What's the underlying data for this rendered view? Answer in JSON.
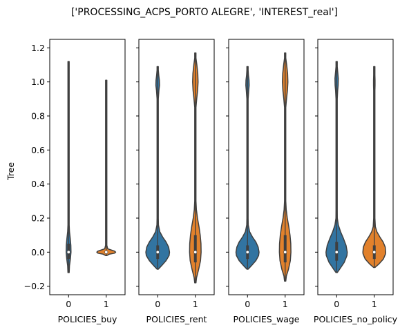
{
  "chart_data": {
    "type": "violin",
    "title": "['PROCESSING_ACPS_PORTO ALEGRE', 'INTEREST_real']",
    "ylabel": "Tree",
    "ylim": [
      -0.25,
      1.25
    ],
    "yticks": [
      -0.2,
      0.0,
      0.2,
      0.4,
      0.6,
      0.8,
      1.0,
      1.2
    ],
    "ytick_labels": [
      "−0.2",
      "0.0",
      "0.2",
      "0.4",
      "0.6",
      "0.8",
      "1.0",
      "1.2"
    ],
    "sharey": true,
    "colors": {
      "0": "#3274a1",
      "1": "#e1812c"
    },
    "panels": [
      {
        "xlabel": "POLICIES_buy",
        "categories": [
          "0",
          "1"
        ],
        "violins": [
          {
            "category": "0",
            "min": -0.12,
            "max": 1.12,
            "median": 0.0,
            "q1": -0.04,
            "q3": 0.05,
            "profile": [
              [
                -0.12,
                0.0
              ],
              [
                -0.08,
                0.06
              ],
              [
                -0.04,
                0.12
              ],
              [
                0.0,
                0.16
              ],
              [
                0.04,
                0.15
              ],
              [
                0.08,
                0.11
              ],
              [
                0.12,
                0.06
              ],
              [
                0.16,
                0.03
              ],
              [
                0.2,
                0.015
              ],
              [
                0.3,
                0.01
              ],
              [
                0.6,
                0.01
              ],
              [
                0.9,
                0.01
              ],
              [
                1.0,
                0.012
              ],
              [
                1.05,
                0.01
              ],
              [
                1.12,
                0.0
              ]
            ]
          },
          {
            "category": "1",
            "min": -0.02,
            "max": 1.01,
            "median": 0.0,
            "q1": -0.005,
            "q3": 0.005,
            "profile": [
              [
                -0.02,
                0.0
              ],
              [
                -0.012,
                0.2
              ],
              [
                -0.006,
                0.55
              ],
              [
                0.0,
                0.62
              ],
              [
                0.006,
                0.55
              ],
              [
                0.012,
                0.35
              ],
              [
                0.02,
                0.1
              ],
              [
                0.04,
                0.02
              ],
              [
                0.1,
                0.01
              ],
              [
                0.5,
                0.01
              ],
              [
                0.9,
                0.01
              ],
              [
                1.01,
                0.0
              ]
            ]
          }
        ]
      },
      {
        "xlabel": "POLICIES_rent",
        "categories": [
          "0",
          "1"
        ],
        "violins": [
          {
            "category": "0",
            "min": -0.1,
            "max": 1.09,
            "median": 0.0,
            "q1": -0.04,
            "q3": 0.04,
            "profile": [
              [
                -0.1,
                0.0
              ],
              [
                -0.08,
                0.25
              ],
              [
                -0.05,
                0.55
              ],
              [
                -0.02,
                0.75
              ],
              [
                0.0,
                0.78
              ],
              [
                0.03,
                0.72
              ],
              [
                0.06,
                0.55
              ],
              [
                0.09,
                0.32
              ],
              [
                0.12,
                0.14
              ],
              [
                0.16,
                0.05
              ],
              [
                0.2,
                0.025
              ],
              [
                0.4,
                0.015
              ],
              [
                0.8,
                0.015
              ],
              [
                0.9,
                0.03
              ],
              [
                0.95,
                0.08
              ],
              [
                0.98,
                0.12
              ],
              [
                1.01,
                0.11
              ],
              [
                1.04,
                0.07
              ],
              [
                1.07,
                0.03
              ],
              [
                1.09,
                0.0
              ]
            ]
          },
          {
            "category": "1",
            "min": -0.18,
            "max": 1.17,
            "median": 0.0,
            "q1": -0.06,
            "q3": 0.1,
            "profile": [
              [
                -0.18,
                0.0
              ],
              [
                -0.15,
                0.08
              ],
              [
                -0.1,
                0.22
              ],
              [
                -0.05,
                0.34
              ],
              [
                0.0,
                0.38
              ],
              [
                0.05,
                0.37
              ],
              [
                0.1,
                0.32
              ],
              [
                0.15,
                0.24
              ],
              [
                0.2,
                0.14
              ],
              [
                0.25,
                0.07
              ],
              [
                0.3,
                0.03
              ],
              [
                0.4,
                0.012
              ],
              [
                0.6,
                0.012
              ],
              [
                0.8,
                0.015
              ],
              [
                0.85,
                0.04
              ],
              [
                0.9,
                0.09
              ],
              [
                0.95,
                0.15
              ],
              [
                1.0,
                0.18
              ],
              [
                1.05,
                0.16
              ],
              [
                1.1,
                0.1
              ],
              [
                1.14,
                0.04
              ],
              [
                1.17,
                0.0
              ]
            ]
          }
        ]
      },
      {
        "xlabel": "POLICIES_wage",
        "categories": [
          "0",
          "1"
        ],
        "violins": [
          {
            "category": "0",
            "min": -0.1,
            "max": 1.09,
            "median": 0.0,
            "q1": -0.04,
            "q3": 0.04,
            "profile": [
              [
                -0.1,
                0.0
              ],
              [
                -0.08,
                0.25
              ],
              [
                -0.05,
                0.55
              ],
              [
                -0.02,
                0.73
              ],
              [
                0.0,
                0.76
              ],
              [
                0.03,
                0.7
              ],
              [
                0.06,
                0.55
              ],
              [
                0.09,
                0.32
              ],
              [
                0.12,
                0.14
              ],
              [
                0.16,
                0.05
              ],
              [
                0.2,
                0.025
              ],
              [
                0.4,
                0.015
              ],
              [
                0.8,
                0.015
              ],
              [
                0.9,
                0.03
              ],
              [
                0.95,
                0.08
              ],
              [
                0.98,
                0.11
              ],
              [
                1.01,
                0.1
              ],
              [
                1.04,
                0.06
              ],
              [
                1.07,
                0.03
              ],
              [
                1.09,
                0.0
              ]
            ]
          },
          {
            "category": "1",
            "min": -0.17,
            "max": 1.17,
            "median": 0.0,
            "q1": -0.06,
            "q3": 0.1,
            "profile": [
              [
                -0.17,
                0.0
              ],
              [
                -0.14,
                0.08
              ],
              [
                -0.1,
                0.22
              ],
              [
                -0.05,
                0.34
              ],
              [
                0.0,
                0.38
              ],
              [
                0.05,
                0.37
              ],
              [
                0.1,
                0.32
              ],
              [
                0.15,
                0.24
              ],
              [
                0.2,
                0.14
              ],
              [
                0.25,
                0.07
              ],
              [
                0.3,
                0.03
              ],
              [
                0.4,
                0.012
              ],
              [
                0.6,
                0.012
              ],
              [
                0.8,
                0.015
              ],
              [
                0.85,
                0.04
              ],
              [
                0.9,
                0.09
              ],
              [
                0.95,
                0.15
              ],
              [
                1.0,
                0.18
              ],
              [
                1.05,
                0.16
              ],
              [
                1.1,
                0.1
              ],
              [
                1.14,
                0.04
              ],
              [
                1.17,
                0.0
              ]
            ]
          }
        ]
      },
      {
        "xlabel": "POLICIES_no_policy",
        "categories": [
          "0",
          "1"
        ],
        "violins": [
          {
            "category": "0",
            "min": -0.12,
            "max": 1.12,
            "median": 0.0,
            "q1": -0.05,
            "q3": 0.06,
            "profile": [
              [
                -0.12,
                0.0
              ],
              [
                -0.1,
                0.2
              ],
              [
                -0.06,
                0.5
              ],
              [
                -0.02,
                0.68
              ],
              [
                0.0,
                0.7
              ],
              [
                0.04,
                0.62
              ],
              [
                0.08,
                0.45
              ],
              [
                0.12,
                0.26
              ],
              [
                0.16,
                0.11
              ],
              [
                0.2,
                0.045
              ],
              [
                0.25,
                0.02
              ],
              [
                0.4,
                0.012
              ],
              [
                0.8,
                0.012
              ],
              [
                0.9,
                0.03
              ],
              [
                0.95,
                0.07
              ],
              [
                0.98,
                0.1
              ],
              [
                1.02,
                0.11
              ],
              [
                1.06,
                0.07
              ],
              [
                1.09,
                0.03
              ],
              [
                1.12,
                0.0
              ]
            ]
          },
          {
            "category": "1",
            "min": -0.09,
            "max": 1.09,
            "median": 0.0,
            "q1": -0.04,
            "q3": 0.04,
            "profile": [
              [
                -0.09,
                0.0
              ],
              [
                -0.07,
                0.3
              ],
              [
                -0.04,
                0.6
              ],
              [
                -0.01,
                0.74
              ],
              [
                0.0,
                0.75
              ],
              [
                0.03,
                0.72
              ],
              [
                0.06,
                0.58
              ],
              [
                0.09,
                0.36
              ],
              [
                0.12,
                0.17
              ],
              [
                0.15,
                0.07
              ],
              [
                0.2,
                0.025
              ],
              [
                0.3,
                0.012
              ],
              [
                0.9,
                0.012
              ],
              [
                0.95,
                0.03
              ],
              [
                0.98,
                0.05
              ],
              [
                1.01,
                0.05
              ],
              [
                1.04,
                0.03
              ],
              [
                1.07,
                0.015
              ],
              [
                1.09,
                0.0
              ]
            ]
          }
        ]
      }
    ]
  }
}
